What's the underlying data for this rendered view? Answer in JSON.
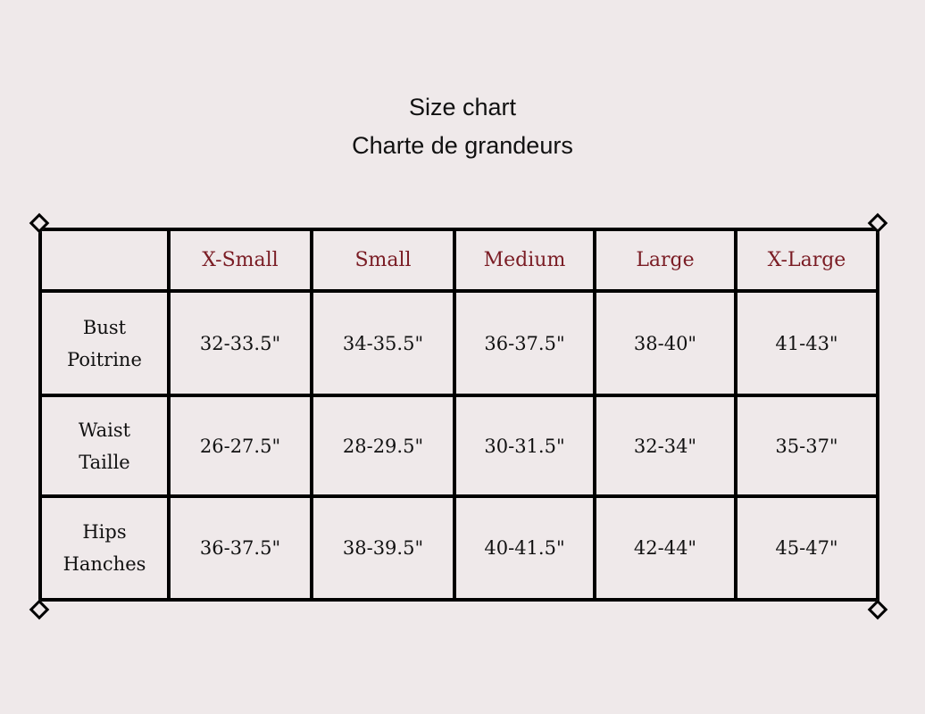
{
  "title": "Size chart",
  "subtitle": "Charte de grandeurs",
  "header_color": "#7a1c24",
  "columns": [
    "X-Small",
    "Small",
    "Medium",
    "Large",
    "X-Large"
  ],
  "rows": [
    {
      "label": [
        "Bust",
        "Poitrine"
      ],
      "values": [
        "32-33.5\"",
        "34-35.5\"",
        "36-37.5\"",
        "38-40\"",
        "41-43\""
      ]
    },
    {
      "label": [
        "Waist",
        "Taille"
      ],
      "values": [
        "26-27.5\"",
        "28-29.5\"",
        "30-31.5\"",
        "32-34\"",
        "35-37\""
      ]
    },
    {
      "label": [
        "Hips",
        "Hanches"
      ],
      "values": [
        "36-37.5\"",
        "38-39.5\"",
        "40-41.5\"",
        "42-44\"",
        "45-47\""
      ]
    }
  ]
}
